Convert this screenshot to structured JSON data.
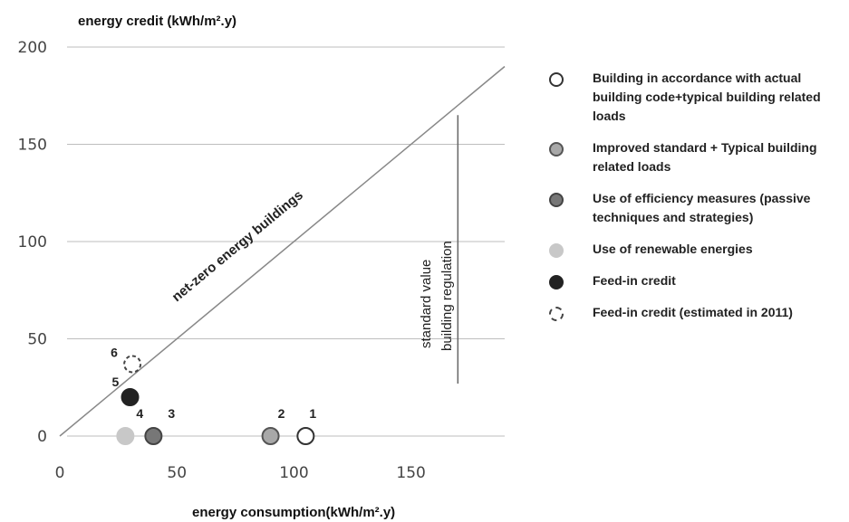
{
  "chart_data": {
    "type": "scatter",
    "xlabel": "energy consumption(kWh/m².y)",
    "ylabel": "energy credit (kWh/m².y)",
    "xlim": [
      0,
      190
    ],
    "ylim": [
      0,
      200
    ],
    "xticks": [
      "0",
      "50",
      "100",
      "150"
    ],
    "yticks": [
      "0",
      "50",
      "100",
      "150",
      "200"
    ],
    "grid": "horizontal",
    "legend_position": "right",
    "series": [
      {
        "name": "Building in accordance with actual building code+typical building related loads",
        "label": "1",
        "x": 105,
        "y": 0,
        "fill": "#ffffff",
        "stroke": "#333333",
        "dashed": false
      },
      {
        "name": "Improved standard + Typical building related loads",
        "label": "2",
        "x": 90,
        "y": 0,
        "fill": "#a8a8a8",
        "stroke": "#555555",
        "dashed": false
      },
      {
        "name": "Use of efficiency measures (passive techniques and strategies)",
        "label": "3",
        "x": 40,
        "y": 0,
        "fill": "#777777",
        "stroke": "#444444",
        "dashed": false
      },
      {
        "name": "Use of renewable energies",
        "label": "4",
        "x": 28,
        "y": 0,
        "fill": "#c8c8c8",
        "stroke": "#c8c8c8",
        "dashed": false
      },
      {
        "name": "Feed-in credit",
        "label": "5",
        "x": 30,
        "y": 20,
        "fill": "#222222",
        "stroke": "#222222",
        "dashed": false
      },
      {
        "name": "Feed-in credit (estimated in 2011)",
        "label": "6",
        "x": 31,
        "y": 37,
        "fill": "#ffffff",
        "stroke": "#444444",
        "dashed": true
      }
    ],
    "annotations": {
      "diagonal": "net-zero energy buildings",
      "vertical_line_x": 170,
      "vertical_line_y": [
        27,
        165
      ],
      "vertical_line_label_1": "standard  value",
      "vertical_line_label_2": "building regulation"
    }
  }
}
